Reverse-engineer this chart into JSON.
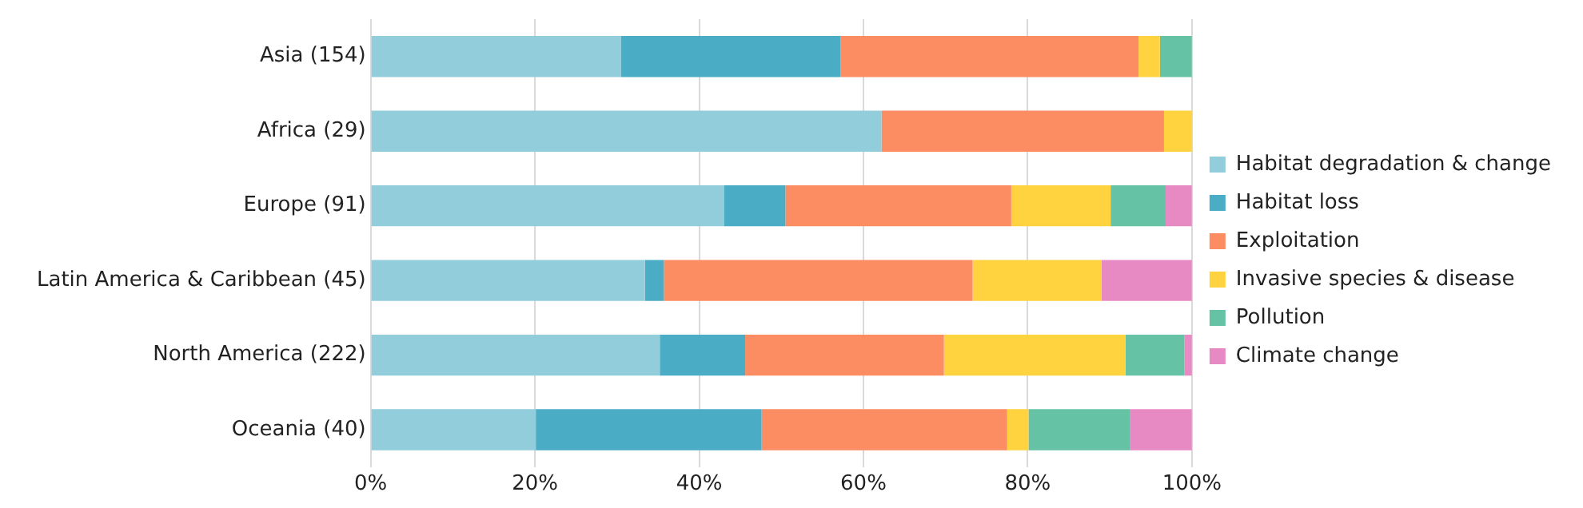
{
  "chart_data": {
    "type": "bar",
    "orientation": "horizontal",
    "stacked": true,
    "categories": [
      "Asia (154)",
      "Africa (29)",
      "Europe (91)",
      "Latin America & Caribbean (45)",
      "North America (222)",
      "Oceania (40)"
    ],
    "series": [
      {
        "name": "Habitat degradation & change",
        "color": "#92cddc",
        "values": [
          30.5,
          62.2,
          43.0,
          33.4,
          35.2,
          20.1
        ]
      },
      {
        "name": "Habitat loss",
        "color": "#4bacc6",
        "values": [
          26.7,
          0,
          7.5,
          2.3,
          10.4,
          27.5
        ]
      },
      {
        "name": "Exploitation",
        "color": "#fc8c62",
        "values": [
          36.3,
          34.4,
          27.5,
          37.6,
          24.2,
          29.9
        ]
      },
      {
        "name": "Invasive species & disease",
        "color": "#ffd23f",
        "values": [
          2.6,
          3.4,
          12.1,
          15.7,
          22.1,
          2.6
        ]
      },
      {
        "name": "Pollution",
        "color": "#66c2a5",
        "values": [
          3.9,
          0,
          6.7,
          0,
          7.2,
          12.4
        ]
      },
      {
        "name": "Climate change",
        "color": "#e78ac3",
        "values": [
          0,
          0,
          3.2,
          11.0,
          0.9,
          7.5
        ]
      }
    ],
    "xlim": [
      0,
      100
    ],
    "xticks": [
      {
        "value": 0,
        "label": "0%"
      },
      {
        "value": 20,
        "label": "20%"
      },
      {
        "value": 40,
        "label": "40%"
      },
      {
        "value": 60,
        "label": "60%"
      },
      {
        "value": 80,
        "label": "80%"
      },
      {
        "value": 100,
        "label": "100%"
      }
    ],
    "grid": "x",
    "legend": "right"
  }
}
